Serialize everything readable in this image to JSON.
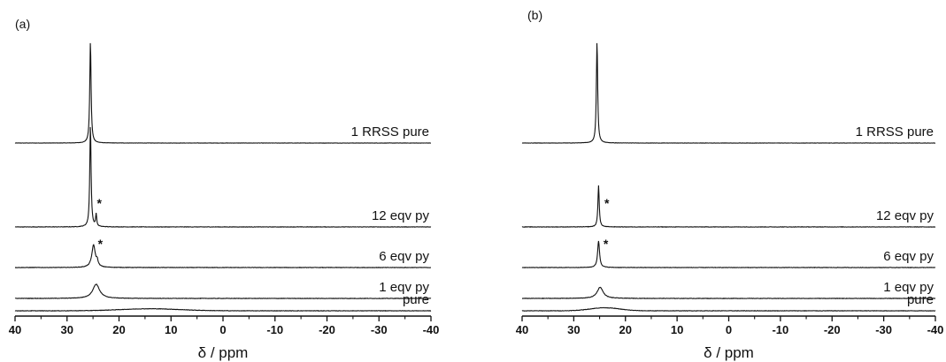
{
  "chart_data": [
    {
      "type": "line",
      "panel_label": "(a)",
      "xlabel": "δ / ppm",
      "xlim": [
        40,
        -40
      ],
      "x_ticks": [
        40,
        30,
        20,
        10,
        0,
        -10,
        -20,
        -30,
        -40
      ],
      "x_tick_labels": [
        "40",
        "30",
        "20",
        "10",
        "0",
        "-10",
        "-20",
        "-30",
        "-40"
      ],
      "series": [
        {
          "label": "1 RRSS pure",
          "peaks": [
            {
              "x": 25.5,
              "height": 1.0,
              "width": 0.3
            }
          ],
          "broad": null,
          "noise": 0.004,
          "star": null
        },
        {
          "label": "12 eqv py",
          "peaks": [
            {
              "x": 25.5,
              "height": 1.0,
              "width": 0.3
            },
            {
              "x": 24.4,
              "height": 0.12,
              "width": 0.25
            }
          ],
          "broad": null,
          "noise": 0.006,
          "star": {
            "x": 23.8,
            "text": "*"
          }
        },
        {
          "label": "6 eqv py",
          "peaks": [
            {
              "x": 24.9,
              "height": 0.22,
              "width": 0.8
            },
            {
              "x": 24.2,
              "height": 0.05,
              "width": 0.4
            }
          ],
          "broad": null,
          "noise": 0.006,
          "star": {
            "x": 23.6,
            "text": "*"
          }
        },
        {
          "label": "1 eqv py",
          "peaks": [
            {
              "x": 24.4,
              "height": 0.14,
              "width": 1.6
            }
          ],
          "broad": null,
          "noise": 0.006,
          "star": null
        },
        {
          "label": "pure",
          "peaks": [],
          "broad": {
            "x": 14,
            "height": 0.02,
            "width": 16
          },
          "noise": 0.006,
          "star": null
        }
      ]
    },
    {
      "type": "line",
      "panel_label": "(b)",
      "xlabel": "δ / ppm",
      "xlim": [
        40,
        -40
      ],
      "x_ticks": [
        40,
        30,
        20,
        10,
        0,
        -10,
        -20,
        -30,
        -40
      ],
      "x_tick_labels": [
        "40",
        "30",
        "20",
        "10",
        "0",
        "-10",
        "-20",
        "-30",
        "-40"
      ],
      "series": [
        {
          "label": "1 RRSS pure",
          "peaks": [
            {
              "x": 25.5,
              "height": 1.0,
              "width": 0.3
            }
          ],
          "broad": null,
          "noise": 0.004,
          "star": null
        },
        {
          "label": "12 eqv py",
          "peaks": [
            {
              "x": 25.2,
              "height": 0.41,
              "width": 0.3
            }
          ],
          "broad": null,
          "noise": 0.006,
          "star": {
            "x": 23.6,
            "text": "*"
          }
        },
        {
          "label": "6 eqv py",
          "peaks": [
            {
              "x": 25.2,
              "height": 0.26,
              "width": 0.45
            }
          ],
          "broad": null,
          "noise": 0.006,
          "star": {
            "x": 23.8,
            "text": "*"
          }
        },
        {
          "label": "1 eqv py",
          "peaks": [
            {
              "x": 24.9,
              "height": 0.11,
              "width": 1.4
            }
          ],
          "broad": null,
          "noise": 0.006,
          "star": null
        },
        {
          "label": "pure",
          "peaks": [],
          "broad": {
            "x": 24,
            "height": 0.03,
            "width": 8
          },
          "noise": 0.006,
          "star": null
        }
      ]
    }
  ]
}
